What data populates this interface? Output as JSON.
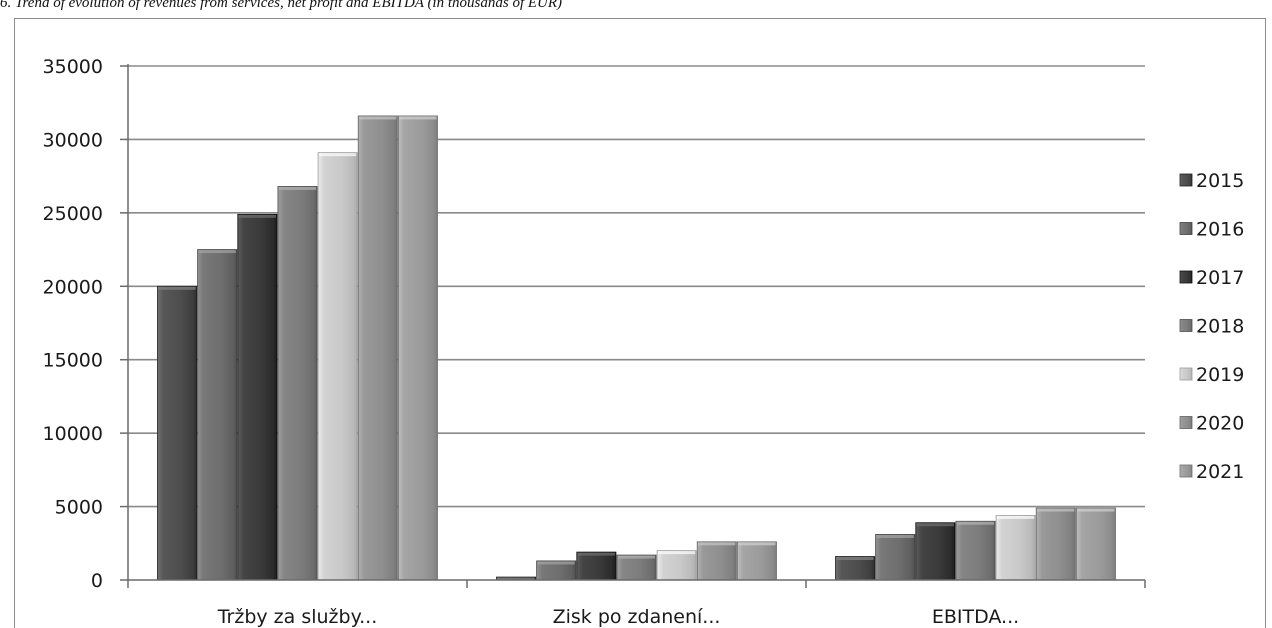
{
  "caption": "6. Trend of evolution of revenues from services, net profit and EBITDA (in thousands of EUR)",
  "chart_data": {
    "type": "bar",
    "categories": [
      "Tržby za služby...",
      "Zisk po zdanení...",
      "EBITDA..."
    ],
    "series": [
      {
        "name": "2015",
        "values": [
          20000,
          200,
          1600
        ]
      },
      {
        "name": "2016",
        "values": [
          22500,
          1300,
          3100
        ]
      },
      {
        "name": "2017",
        "values": [
          24900,
          1900,
          3900
        ]
      },
      {
        "name": "2018",
        "values": [
          26800,
          1700,
          4000
        ]
      },
      {
        "name": "2019",
        "values": [
          29100,
          2000,
          4400
        ]
      },
      {
        "name": "2020",
        "values": [
          31600,
          2600,
          4900
        ]
      },
      {
        "name": "2021",
        "values": [
          31600,
          2600,
          4900
        ]
      }
    ],
    "ylim": [
      0,
      35000
    ],
    "yticks": [
      "0",
      "5000",
      "10000",
      "15000",
      "20000",
      "25000",
      "30000",
      "35000"
    ],
    "grid": true,
    "legend": "right",
    "colors": [
      "#4d4d4d",
      "#6e6e6e",
      "#3a3a3a",
      "#7c7c7c",
      "#c9c9c9",
      "#8f8f8f",
      "#9b9b9b"
    ]
  }
}
